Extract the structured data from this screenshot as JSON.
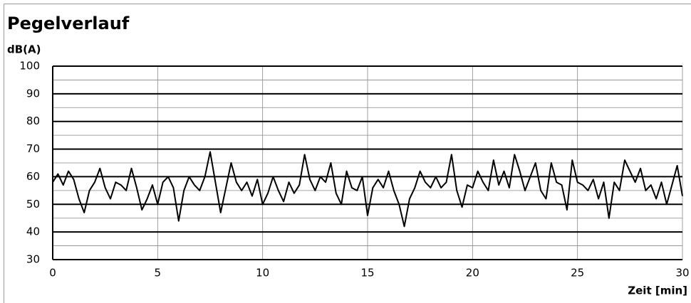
{
  "chart_data": {
    "type": "line",
    "title": "Pegelverlauf",
    "y_label": "dB(A)",
    "x_label": "Zeit [min]",
    "x": [
      0,
      0.25,
      0.5,
      0.75,
      1,
      1.25,
      1.5,
      1.75,
      2,
      2.25,
      2.5,
      2.75,
      3,
      3.25,
      3.5,
      3.75,
      4,
      4.25,
      4.5,
      4.75,
      5,
      5.25,
      5.5,
      5.75,
      6,
      6.25,
      6.5,
      6.75,
      7,
      7.25,
      7.5,
      7.75,
      8,
      8.25,
      8.5,
      8.75,
      9,
      9.25,
      9.5,
      9.75,
      10,
      10.25,
      10.5,
      10.75,
      11,
      11.25,
      11.5,
      11.75,
      12,
      12.25,
      12.5,
      12.75,
      13,
      13.25,
      13.5,
      13.75,
      14,
      14.25,
      14.5,
      14.75,
      15,
      15.25,
      15.5,
      15.75,
      16,
      16.25,
      16.5,
      16.75,
      17,
      17.25,
      17.5,
      17.75,
      18,
      18.25,
      18.5,
      18.75,
      19,
      19.25,
      19.5,
      19.75,
      20,
      20.25,
      20.5,
      20.75,
      21,
      21.25,
      21.5,
      21.75,
      22,
      22.25,
      22.5,
      22.75,
      23,
      23.25,
      23.5,
      23.75,
      24,
      24.25,
      24.5,
      24.75,
      25,
      25.25,
      25.5,
      25.75,
      26,
      26.25,
      26.5,
      26.75,
      27,
      27.25,
      27.5,
      27.75,
      28,
      28.25,
      28.5,
      28.75,
      29,
      29.25,
      29.5,
      29.75,
      30
    ],
    "values": [
      58,
      61,
      57,
      62,
      59,
      52,
      47,
      55,
      58,
      63,
      56,
      52,
      58,
      57,
      55,
      63,
      56,
      48,
      52,
      57,
      50,
      58,
      60,
      56,
      44,
      55,
      60,
      57,
      55,
      60,
      69,
      58,
      47,
      56,
      65,
      58,
      55,
      58,
      53,
      59,
      50,
      54,
      60,
      55,
      51,
      58,
      54,
      57,
      68,
      59,
      55,
      60,
      58,
      65,
      54,
      50,
      62,
      56,
      55,
      60,
      46,
      56,
      59,
      56,
      62,
      55,
      50,
      42,
      52,
      56,
      62,
      58,
      56,
      60,
      56,
      58,
      68,
      55,
      49,
      57,
      56,
      62,
      58,
      55,
      66,
      57,
      62,
      56,
      68,
      62,
      55,
      60,
      65,
      55,
      52,
      65,
      58,
      57,
      48,
      66,
      58,
      57,
      55,
      59,
      52,
      58,
      45,
      58,
      55,
      66,
      62,
      58,
      63,
      55,
      57,
      52,
      58,
      50,
      57,
      64,
      53
    ],
    "color": "#000000",
    "xlim": [
      0,
      30
    ],
    "xticks": [
      0,
      5,
      10,
      15,
      20,
      25,
      30
    ],
    "ylim": [
      30,
      100
    ],
    "yticks": [
      30,
      40,
      50,
      60,
      70,
      80,
      90,
      100
    ],
    "y_minor_grid": [
      35,
      45,
      55,
      65,
      75,
      85,
      95
    ]
  }
}
